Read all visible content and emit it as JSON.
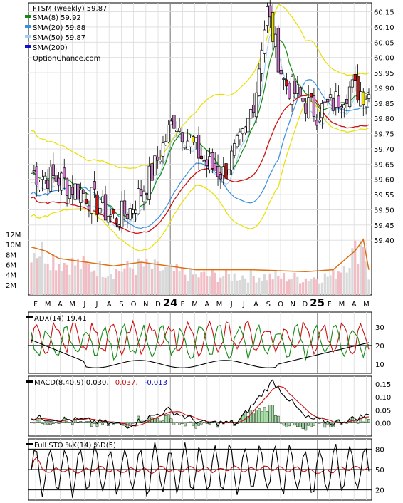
{
  "colors": {
    "green": "#138a13",
    "lightblue": "#3a8fe0",
    "paleblue": "#9fd0f0",
    "navy": "#1010c8",
    "red": "#cc1111",
    "yellow": "#e8e000",
    "orange": "#dd6f11",
    "magenta": "#cc77cc",
    "volpink": "#f2bcc4",
    "volgray": "#d9d9d9",
    "macdgreen": "#a6dfa6"
  },
  "chart_data": [
    {
      "type": "candlestick",
      "title": "FTSM (weekly) 59.87",
      "legend": [
        {
          "name": "SMA(8) 59.92",
          "color": "green"
        },
        {
          "name": "SMA(20) 59.88",
          "color": "lightblue"
        },
        {
          "name": "SMA(50) 59.87",
          "color": "paleblue"
        },
        {
          "name": "SMA(200)",
          "color": "navy"
        }
      ],
      "legend_placement": "top-left",
      "source": "OptionChance.com",
      "ylim": [
        59.37,
        60.17
      ],
      "y_ticks": [
        "60.15",
        "60.10",
        "60.05",
        "60.00",
        "59.95",
        "59.90",
        "59.85",
        "59.80",
        "59.75",
        "59.70",
        "59.65",
        "59.60",
        "59.55",
        "59.50",
        "59.45",
        "59.40"
      ],
      "x_labels": [
        "F",
        "M",
        "A",
        "M",
        "J",
        "J",
        "A",
        "S",
        "O",
        "N",
        "D",
        "24",
        "F",
        "M",
        "A",
        "M",
        "J",
        "J",
        "A",
        "S",
        "O",
        "N",
        "D",
        "25",
        "F",
        "M",
        "A",
        "M"
      ],
      "price_anchors": [
        [
          0,
          59.62
        ],
        [
          10,
          59.6
        ],
        [
          20,
          59.55
        ],
        [
          30,
          59.47
        ],
        [
          36,
          59.5
        ],
        [
          44,
          59.62
        ],
        [
          52,
          59.8
        ],
        [
          58,
          59.72
        ],
        [
          64,
          59.65
        ],
        [
          70,
          59.62
        ],
        [
          78,
          59.75
        ],
        [
          82,
          59.9
        ],
        [
          84,
          60.05
        ],
        [
          86,
          60.15
        ],
        [
          92,
          59.92
        ],
        [
          100,
          59.85
        ],
        [
          104,
          59.82
        ],
        [
          110,
          59.85
        ],
        [
          116,
          59.9
        ],
        [
          123,
          59.88
        ]
      ],
      "bollinger_half_width_weeks": [
        [
          0,
          0.14
        ],
        [
          20,
          0.08
        ],
        [
          40,
          0.14
        ],
        [
          60,
          0.12
        ],
        [
          80,
          0.25
        ],
        [
          90,
          0.3
        ],
        [
          100,
          0.1
        ],
        [
          123,
          0.09
        ]
      ],
      "grid": true
    },
    {
      "type": "bar",
      "name": "volume",
      "y_ticks": [
        "12M",
        "10M",
        "8M",
        "6M",
        "4M",
        "2M"
      ],
      "ylim": [
        0,
        13
      ],
      "volume_anchors": [
        [
          0,
          10
        ],
        [
          5,
          9
        ],
        [
          10,
          7
        ],
        [
          20,
          6
        ],
        [
          30,
          5
        ],
        [
          40,
          6
        ],
        [
          50,
          5
        ],
        [
          60,
          4
        ],
        [
          80,
          4
        ],
        [
          100,
          3.5
        ],
        [
          110,
          4
        ],
        [
          118,
          9
        ],
        [
          121,
          12
        ],
        [
          123,
          4
        ]
      ]
    },
    {
      "type": "line",
      "label": "ADX(14) 19.41",
      "y_ticks": [
        "30",
        "20",
        "10"
      ],
      "ylim": [
        5,
        38
      ],
      "reference_line": 20
    },
    {
      "type": "line",
      "label": "MACD(8,40,9) 0.030,",
      "value_red": "0.037,",
      "value_blue": "-0.013",
      "y_ticks": [
        "0.15",
        "0.10",
        "0.05",
        "0.00"
      ],
      "ylim": [
        -0.05,
        0.18
      ]
    },
    {
      "type": "line",
      "label": "Full STO %K(14) %D(5)",
      "y_ticks": [
        "80",
        "50",
        "20"
      ],
      "ylim": [
        5,
        95
      ],
      "reference_lines": [
        80,
        50,
        20
      ]
    }
  ]
}
